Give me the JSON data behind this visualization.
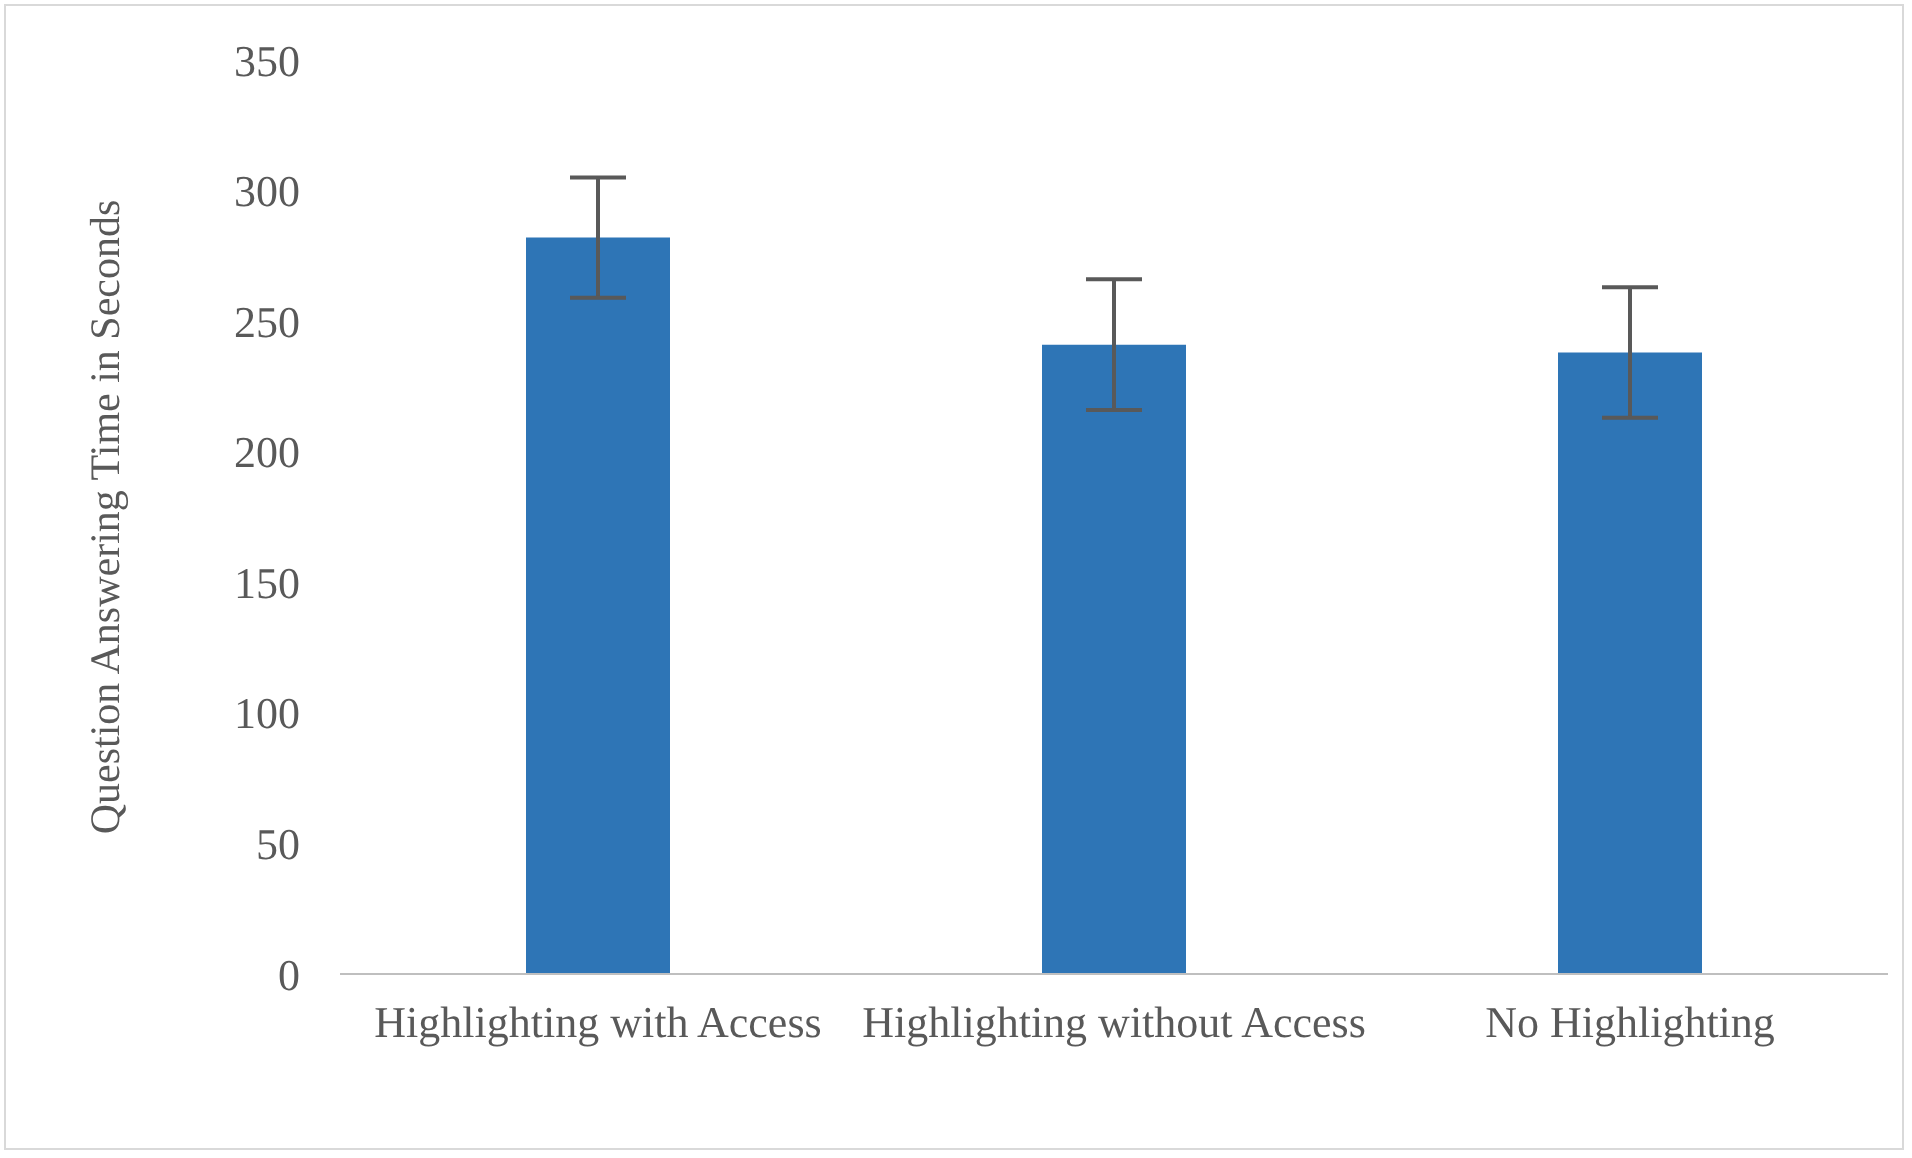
{
  "chart_data": {
    "type": "bar",
    "ylabel": "Question Answering Time in Seconds",
    "categories": [
      "Highlighting with Access",
      "Highlighting without Access",
      "No Highlighting"
    ],
    "values": [
      282,
      241,
      238
    ],
    "errors": [
      23,
      25,
      25
    ],
    "color": "#2e75b6",
    "ylim": [
      0,
      350
    ],
    "yticks": [
      0,
      50,
      100,
      150,
      200,
      250,
      300,
      350
    ],
    "grid": false,
    "legend": false
  }
}
